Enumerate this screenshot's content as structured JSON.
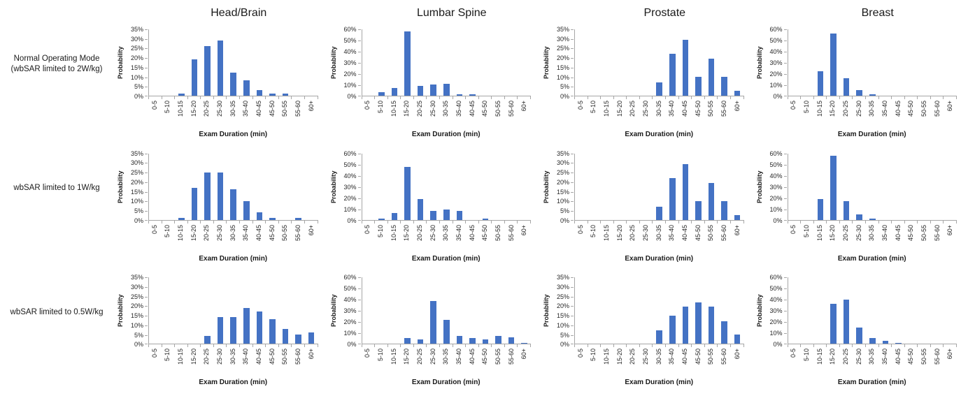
{
  "columns": [
    "Head/Brain",
    "Lumbar Spine",
    "Prostate",
    "Breast"
  ],
  "rows": [
    {
      "label": "Normal Operating Mode\n(wbSAR limited to 2W/kg)"
    },
    {
      "label": "wbSAR limited to 1W/kg"
    },
    {
      "label": "wbSAR limited to 0.5W/kg"
    }
  ],
  "colors": {
    "bar": "#4472c4",
    "axis": "#a6a6a6"
  },
  "chart_data": [
    {
      "type": "bar",
      "row": 0,
      "col": 0,
      "title": "Head/Brain — Normal Operating Mode (wbSAR limited to 2W/kg)",
      "categories": [
        "0-5",
        "5-10",
        "10-15",
        "15-20",
        "20-25",
        "25-30",
        "30-35",
        "35-40",
        "40-45",
        "45-50",
        "50-55",
        "55-60",
        "60+"
      ],
      "values": [
        0,
        0,
        1,
        19,
        26,
        29,
        12,
        8,
        3,
        1,
        1,
        0,
        0
      ],
      "xlabel": "Exam Duration (min)",
      "ylabel": "Probability",
      "ylim": [
        0,
        35
      ],
      "yticks": [
        0,
        5,
        10,
        15,
        20,
        25,
        30,
        35
      ],
      "ytick_suffix": "%",
      "grid": false,
      "legend": false
    },
    {
      "type": "bar",
      "row": 0,
      "col": 1,
      "title": "Lumbar Spine — Normal Operating Mode (wbSAR limited to 2W/kg)",
      "categories": [
        "0-5",
        "5-10",
        "10-15",
        "15-20",
        "20-25",
        "25-30",
        "30-35",
        "35-40",
        "40-45",
        "45-50",
        "50-55",
        "55-60",
        "60+"
      ],
      "values": [
        0,
        3,
        7,
        58,
        9,
        10,
        11,
        1,
        1,
        0,
        0,
        0,
        0
      ],
      "xlabel": "Exam Duration (min)",
      "ylabel": "Probability",
      "ylim": [
        0,
        60
      ],
      "yticks": [
        0,
        10,
        20,
        30,
        40,
        50,
        60
      ],
      "ytick_suffix": "%",
      "grid": false,
      "legend": false
    },
    {
      "type": "bar",
      "row": 0,
      "col": 2,
      "title": "Prostate — Normal Operating Mode (wbSAR limited to 2W/kg)",
      "categories": [
        "0-5",
        "5-10",
        "10-15",
        "15-20",
        "20-25",
        "25-30",
        "30-35",
        "35-40",
        "40-45",
        "45-50",
        "50-55",
        "55-60",
        "60+"
      ],
      "values": [
        0,
        0,
        0,
        0,
        0,
        0,
        7,
        22,
        29.5,
        10,
        19.5,
        10,
        2.5
      ],
      "xlabel": "Exam Duration (min)",
      "ylabel": "Probability",
      "ylim": [
        0,
        35
      ],
      "yticks": [
        0,
        5,
        10,
        15,
        20,
        25,
        30,
        35
      ],
      "ytick_suffix": "%",
      "grid": false,
      "legend": false
    },
    {
      "type": "bar",
      "row": 0,
      "col": 3,
      "title": "Breast — Normal Operating Mode (wbSAR limited to 2W/kg)",
      "categories": [
        "0-5",
        "5-10",
        "10-15",
        "15-20",
        "20-25",
        "25-30",
        "30-35",
        "35-40",
        "40-45",
        "45-50",
        "50-55",
        "55-60",
        "60+"
      ],
      "values": [
        0,
        0,
        22,
        56,
        16,
        5,
        1,
        0,
        0,
        0,
        0,
        0,
        0
      ],
      "xlabel": "Exam Duration (min)",
      "ylabel": "Probability",
      "ylim": [
        0,
        60
      ],
      "yticks": [
        0,
        10,
        20,
        30,
        40,
        50,
        60
      ],
      "ytick_suffix": "%",
      "grid": false,
      "legend": false
    },
    {
      "type": "bar",
      "row": 1,
      "col": 0,
      "title": "Head/Brain — wbSAR limited to 1W/kg",
      "categories": [
        "0-5",
        "5-10",
        "10-15",
        "15-20",
        "20-25",
        "25-30",
        "30-35",
        "35-40",
        "40-45",
        "45-50",
        "50-55",
        "55-60",
        "60+"
      ],
      "values": [
        0,
        0,
        1,
        17,
        25,
        25,
        16,
        10,
        4,
        1,
        0,
        1,
        0
      ],
      "xlabel": "Exam Duration (min)",
      "ylabel": "Probability",
      "ylim": [
        0,
        35
      ],
      "yticks": [
        0,
        5,
        10,
        15,
        20,
        25,
        30,
        35
      ],
      "ytick_suffix": "%",
      "grid": false,
      "legend": false
    },
    {
      "type": "bar",
      "row": 1,
      "col": 1,
      "title": "Lumbar Spine — wbSAR limited to 1W/kg",
      "categories": [
        "0-5",
        "5-10",
        "10-15",
        "15-20",
        "20-25",
        "25-30",
        "30-35",
        "35-40",
        "40-45",
        "45-50",
        "50-55",
        "55-60",
        "60+"
      ],
      "values": [
        0,
        1,
        6,
        48,
        19,
        8,
        9,
        8,
        0,
        1,
        0,
        0,
        0
      ],
      "xlabel": "Exam Duration (min)",
      "ylabel": "Probability",
      "ylim": [
        0,
        60
      ],
      "yticks": [
        0,
        10,
        20,
        30,
        40,
        50,
        60
      ],
      "ytick_suffix": "%",
      "grid": false,
      "legend": false
    },
    {
      "type": "bar",
      "row": 1,
      "col": 2,
      "title": "Prostate — wbSAR limited to 1W/kg",
      "categories": [
        "0-5",
        "5-10",
        "10-15",
        "15-20",
        "20-25",
        "25-30",
        "30-35",
        "35-40",
        "40-45",
        "45-50",
        "50-55",
        "55-60",
        "60+"
      ],
      "values": [
        0,
        0,
        0,
        0,
        0,
        0,
        7,
        22,
        29.5,
        10,
        19.5,
        10,
        2.5
      ],
      "xlabel": "Exam Duration (min)",
      "ylabel": "Probability",
      "ylim": [
        0,
        35
      ],
      "yticks": [
        0,
        5,
        10,
        15,
        20,
        25,
        30,
        35
      ],
      "ytick_suffix": "%",
      "grid": false,
      "legend": false
    },
    {
      "type": "bar",
      "row": 1,
      "col": 3,
      "title": "Breast — wbSAR limited to 1W/kg",
      "categories": [
        "0-5",
        "5-10",
        "10-15",
        "15-20",
        "20-25",
        "25-30",
        "30-35",
        "35-40",
        "40-45",
        "45-50",
        "50-55",
        "55-60",
        "60+"
      ],
      "values": [
        0,
        0,
        19,
        58,
        17,
        5,
        1,
        0,
        0,
        0,
        0,
        0,
        0
      ],
      "xlabel": "Exam Duration (min)",
      "ylabel": "Probability",
      "ylim": [
        0,
        60
      ],
      "yticks": [
        0,
        10,
        20,
        30,
        40,
        50,
        60
      ],
      "ytick_suffix": "%",
      "grid": false,
      "legend": false
    },
    {
      "type": "bar",
      "row": 2,
      "col": 0,
      "title": "Head/Brain — wbSAR limited to 0.5W/kg",
      "categories": [
        "0-5",
        "5-10",
        "10-15",
        "15-20",
        "20-25",
        "25-30",
        "30-35",
        "35-40",
        "40-45",
        "45-50",
        "50-55",
        "55-60",
        "60+"
      ],
      "values": [
        0,
        0,
        0,
        0,
        4,
        14,
        14,
        19,
        17,
        13,
        8,
        5,
        6
      ],
      "xlabel": "Exam Duration (min)",
      "ylabel": "Probability",
      "ylim": [
        0,
        35
      ],
      "yticks": [
        0,
        5,
        10,
        15,
        20,
        25,
        30,
        35
      ],
      "ytick_suffix": "%",
      "grid": false,
      "legend": false
    },
    {
      "type": "bar",
      "row": 2,
      "col": 1,
      "title": "Lumbar Spine — wbSAR limited to 0.5W/kg",
      "categories": [
        "0-5",
        "5-10",
        "10-15",
        "15-20",
        "20-25",
        "25-30",
        "30-35",
        "35-40",
        "40-45",
        "45-50",
        "50-55",
        "55-60",
        "60+"
      ],
      "values": [
        0,
        0,
        0,
        5,
        4,
        39,
        22,
        7,
        5,
        4,
        7,
        6,
        1
      ],
      "xlabel": "Exam Duration (min)",
      "ylabel": "Probability",
      "ylim": [
        0,
        60
      ],
      "yticks": [
        0,
        10,
        20,
        30,
        40,
        50,
        60
      ],
      "ytick_suffix": "%",
      "grid": false,
      "legend": false
    },
    {
      "type": "bar",
      "row": 2,
      "col": 2,
      "title": "Prostate — wbSAR limited to 0.5W/kg",
      "categories": [
        "0-5",
        "5-10",
        "10-15",
        "15-20",
        "20-25",
        "25-30",
        "30-35",
        "35-40",
        "40-45",
        "45-50",
        "50-55",
        "55-60",
        "60+"
      ],
      "values": [
        0,
        0,
        0,
        0,
        0,
        0,
        7,
        15,
        19.5,
        22,
        19.5,
        12,
        5
      ],
      "xlabel": "Exam Duration (min)",
      "ylabel": "Probability",
      "ylim": [
        0,
        35
      ],
      "yticks": [
        0,
        5,
        10,
        15,
        20,
        25,
        30,
        35
      ],
      "ytick_suffix": "%",
      "grid": false,
      "legend": false
    },
    {
      "type": "bar",
      "row": 2,
      "col": 3,
      "title": "Breast — wbSAR limited to 0.5W/kg",
      "categories": [
        "0-5",
        "5-10",
        "10-15",
        "15-20",
        "20-25",
        "25-30",
        "30-35",
        "35-40",
        "40-45",
        "45-50",
        "50-55",
        "55-60",
        "60+"
      ],
      "values": [
        0,
        0,
        0,
        36,
        40,
        15,
        5,
        3,
        1,
        0,
        0,
        0,
        0
      ],
      "xlabel": "Exam Duration (min)",
      "ylabel": "Probability",
      "ylim": [
        0,
        60
      ],
      "yticks": [
        0,
        10,
        20,
        30,
        40,
        50,
        60
      ],
      "ytick_suffix": "%",
      "grid": false,
      "legend": false
    }
  ]
}
